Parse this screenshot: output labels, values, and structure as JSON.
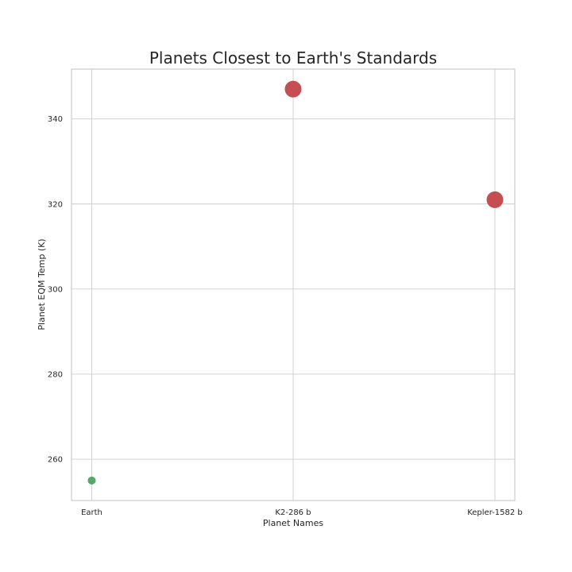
{
  "chart_data": {
    "type": "scatter",
    "title": "Planets Closest to Earth's Standards",
    "xlabel": "Planet Names",
    "ylabel": "Planet EQM Temp (K)",
    "categories": [
      "Earth",
      "K2-286 b",
      "Kepler-1582 b"
    ],
    "series": [
      {
        "points": [
          {
            "x": "Earth",
            "y": 255,
            "color": "#55a868",
            "size": "small"
          },
          {
            "x": "K2-286 b",
            "y": 347,
            "color": "#c44e52",
            "size": "large"
          },
          {
            "x": "Kepler-1582 b",
            "y": 321,
            "color": "#c44e52",
            "size": "large"
          }
        ]
      }
    ],
    "yticks": [
      260,
      280,
      300,
      320,
      340
    ],
    "ylim": [
      250.3,
      351.7
    ],
    "grid": true,
    "style": "whitegrid"
  }
}
